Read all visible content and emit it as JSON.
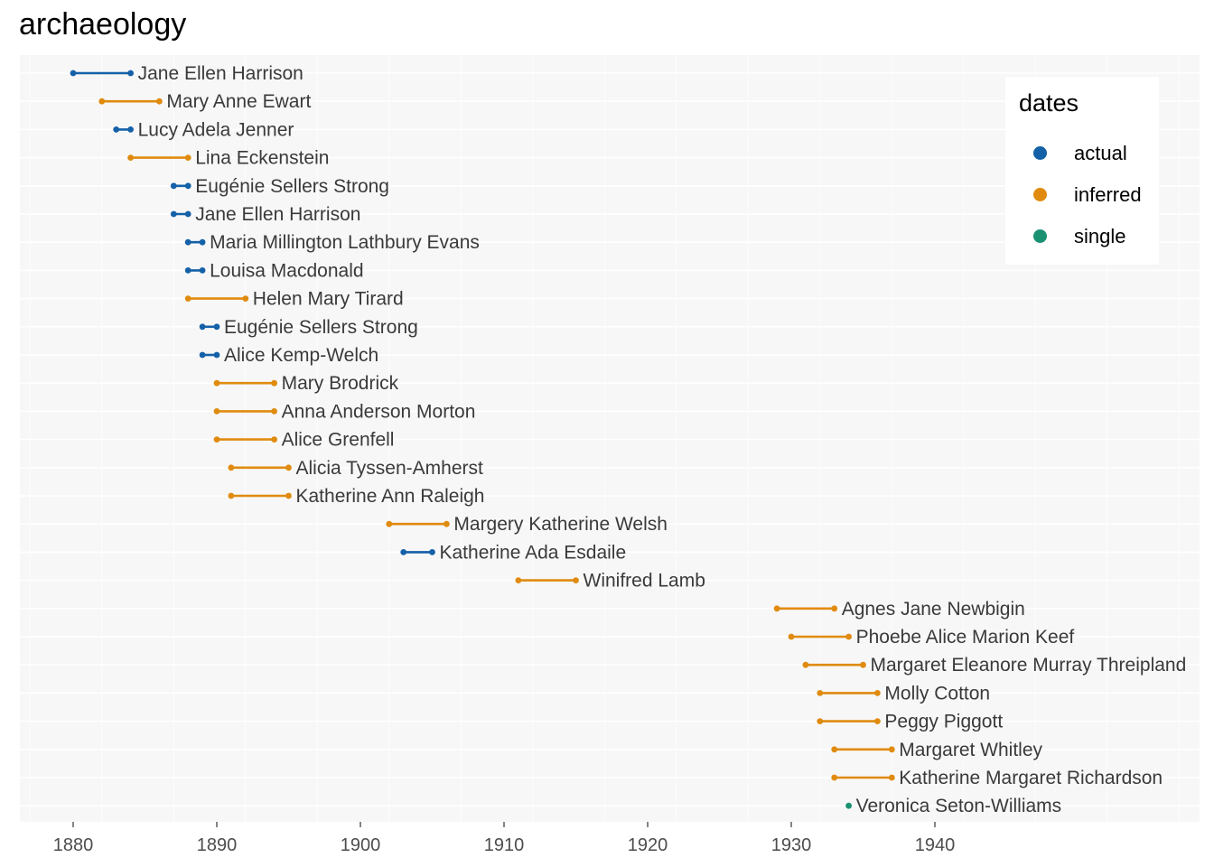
{
  "chart_data": {
    "type": "range-dot",
    "title": "archaeology",
    "xlabel": "",
    "ylabel": "",
    "xlim": [
      1876.5,
      1957.5
    ],
    "x_ticks": [
      1880,
      1890,
      1900,
      1910,
      1920,
      1930,
      1940
    ],
    "grid": true,
    "legend": {
      "title": "dates",
      "position": "top-right",
      "entries": [
        {
          "key": "actual",
          "label": "actual",
          "color": "#1461a8"
        },
        {
          "key": "inferred",
          "label": "inferred",
          "color": "#e08b0f"
        },
        {
          "key": "single",
          "label": "single",
          "color": "#1a9272"
        }
      ]
    },
    "rows": [
      {
        "name": "Jane Ellen Harrison",
        "start": 1880,
        "end": 1884,
        "dates": "actual"
      },
      {
        "name": "Mary Anne Ewart",
        "start": 1882,
        "end": 1886,
        "dates": "inferred"
      },
      {
        "name": "Lucy Adela Jenner",
        "start": 1883,
        "end": 1884,
        "dates": "actual"
      },
      {
        "name": "Lina Eckenstein",
        "start": 1884,
        "end": 1888,
        "dates": "inferred"
      },
      {
        "name": "Eugénie Sellers Strong",
        "start": 1887,
        "end": 1888,
        "dates": "actual"
      },
      {
        "name": "Jane Ellen Harrison",
        "start": 1887,
        "end": 1888,
        "dates": "actual"
      },
      {
        "name": "Maria Millington Lathbury Evans",
        "start": 1888,
        "end": 1889,
        "dates": "actual"
      },
      {
        "name": "Louisa Macdonald",
        "start": 1888,
        "end": 1889,
        "dates": "actual"
      },
      {
        "name": "Helen Mary Tirard",
        "start": 1888,
        "end": 1892,
        "dates": "inferred"
      },
      {
        "name": "Eugénie Sellers Strong",
        "start": 1889,
        "end": 1890,
        "dates": "actual"
      },
      {
        "name": "Alice Kemp-Welch",
        "start": 1889,
        "end": 1890,
        "dates": "actual"
      },
      {
        "name": "Mary Brodrick",
        "start": 1890,
        "end": 1894,
        "dates": "inferred"
      },
      {
        "name": "Anna Anderson Morton",
        "start": 1890,
        "end": 1894,
        "dates": "inferred"
      },
      {
        "name": "Alice Grenfell",
        "start": 1890,
        "end": 1894,
        "dates": "inferred"
      },
      {
        "name": "Alicia Tyssen-Amherst",
        "start": 1891,
        "end": 1895,
        "dates": "inferred"
      },
      {
        "name": "Katherine Ann Raleigh",
        "start": 1891,
        "end": 1895,
        "dates": "inferred"
      },
      {
        "name": "Margery Katherine Welsh",
        "start": 1902,
        "end": 1906,
        "dates": "inferred"
      },
      {
        "name": "Katherine Ada Esdaile",
        "start": 1903,
        "end": 1905,
        "dates": "actual"
      },
      {
        "name": "Winifred Lamb",
        "start": 1911,
        "end": 1915,
        "dates": "inferred"
      },
      {
        "name": "Agnes Jane Newbigin",
        "start": 1929,
        "end": 1933,
        "dates": "inferred"
      },
      {
        "name": "Phoebe Alice Marion Keef",
        "start": 1930,
        "end": 1934,
        "dates": "inferred"
      },
      {
        "name": "Margaret Eleanore Murray Threipland",
        "start": 1931,
        "end": 1935,
        "dates": "inferred"
      },
      {
        "name": "Molly Cotton",
        "start": 1932,
        "end": 1936,
        "dates": "inferred"
      },
      {
        "name": "Peggy Piggott",
        "start": 1932,
        "end": 1936,
        "dates": "inferred"
      },
      {
        "name": "Margaret Whitley",
        "start": 1933,
        "end": 1937,
        "dates": "inferred"
      },
      {
        "name": "Katherine Margaret Richardson",
        "start": 1933,
        "end": 1937,
        "dates": "inferred"
      },
      {
        "name": "Veronica Seton-Williams",
        "start": 1934,
        "end": 1934,
        "dates": "single"
      }
    ]
  }
}
